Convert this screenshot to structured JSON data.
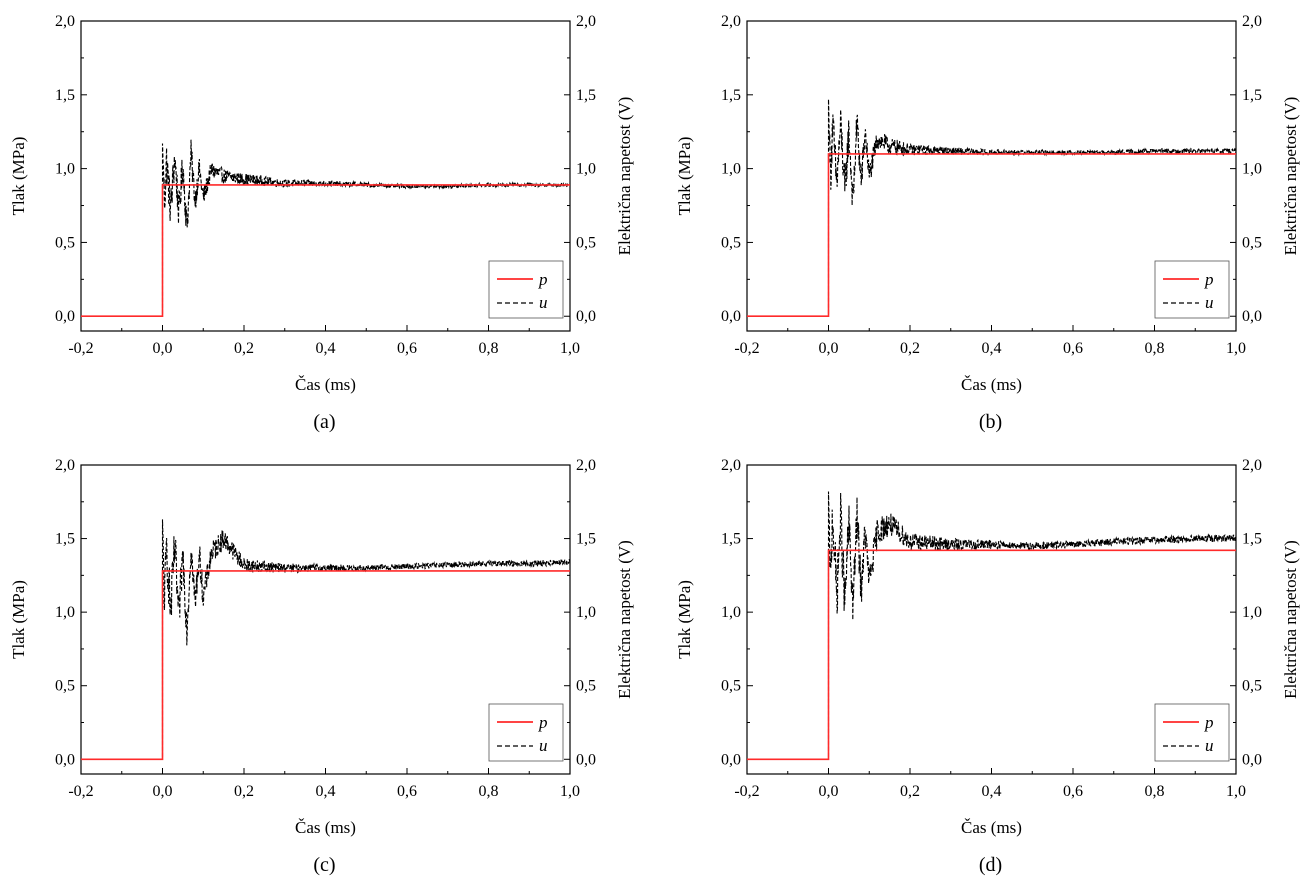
{
  "figure": {
    "colors": {
      "pressure": "#ff2a2a",
      "voltage": "#000000",
      "axes": "#000000",
      "background": "#ffffff"
    }
  },
  "chart_data": [
    {
      "type": "line",
      "panel_label": "(a)",
      "xlabel": "Čas (ms)",
      "ylabel": "Tlak (MPa)",
      "y2label": "Električna napetost (V)",
      "xlim": [
        -0.2,
        1.0
      ],
      "ylim": [
        -0.1,
        2.0
      ],
      "y2lim": [
        -0.1,
        2.0
      ],
      "xticks": [
        "-0,2",
        "0,0",
        "0,2",
        "0,4",
        "0,6",
        "0,8",
        "1,0"
      ],
      "yticks": [
        "0,0",
        "0,5",
        "1,0",
        "1,5",
        "2,0"
      ],
      "legend_position": "bottom-right",
      "series": [
        {
          "name": "p",
          "axis": "left",
          "style": "solid",
          "color": "#ff2a2a",
          "x": [
            -0.2,
            0.0,
            0.0,
            1.0
          ],
          "y": [
            0.0,
            0.0,
            0.89,
            0.89
          ]
        },
        {
          "name": "u",
          "axis": "right",
          "style": "dashed",
          "color": "#000000",
          "x": [
            -0.2,
            0.0,
            0.0,
            0.005,
            0.01,
            0.02,
            0.03,
            0.04,
            0.05,
            0.06,
            0.07,
            0.08,
            0.09,
            0.1,
            0.12,
            0.15,
            0.2,
            0.3,
            0.4,
            0.5,
            0.6,
            0.7,
            0.8,
            0.9,
            1.0
          ],
          "y": [
            0.0,
            0.0,
            1.17,
            0.78,
            1.05,
            0.72,
            1.08,
            0.7,
            1.02,
            0.6,
            1.1,
            0.78,
            1.0,
            0.8,
            0.99,
            0.95,
            0.93,
            0.9,
            0.9,
            0.89,
            0.88,
            0.88,
            0.89,
            0.89,
            0.89
          ],
          "noise_amplitude": [
            0.0,
            0.0,
            0.0,
            0.15,
            0.15,
            0.14,
            0.13,
            0.12,
            0.12,
            0.11,
            0.1,
            0.09,
            0.08,
            0.07,
            0.06,
            0.05,
            0.04,
            0.025,
            0.02,
            0.015,
            0.012,
            0.012,
            0.012,
            0.012,
            0.012
          ]
        }
      ]
    },
    {
      "type": "line",
      "panel_label": "(b)",
      "xlabel": "Čas (ms)",
      "ylabel": "Tlak (MPa)",
      "y2label": "Električna napetost (V)",
      "xlim": [
        -0.2,
        1.0
      ],
      "ylim": [
        -0.1,
        2.0
      ],
      "y2lim": [
        -0.1,
        2.0
      ],
      "xticks": [
        "-0,2",
        "0,0",
        "0,2",
        "0,4",
        "0,6",
        "0,8",
        "1,0"
      ],
      "yticks": [
        "0,0",
        "0,5",
        "1,0",
        "1,5",
        "2,0"
      ],
      "legend_position": "bottom-right",
      "series": [
        {
          "name": "p",
          "axis": "left",
          "style": "solid",
          "color": "#ff2a2a",
          "x": [
            -0.2,
            0.0,
            0.0,
            1.0
          ],
          "y": [
            0.0,
            0.0,
            1.1,
            1.1
          ]
        },
        {
          "name": "u",
          "axis": "right",
          "style": "dashed",
          "color": "#000000",
          "x": [
            -0.2,
            0.0,
            0.0,
            0.005,
            0.01,
            0.02,
            0.03,
            0.04,
            0.05,
            0.06,
            0.07,
            0.08,
            0.09,
            0.1,
            0.12,
            0.15,
            0.2,
            0.3,
            0.4,
            0.5,
            0.6,
            0.7,
            0.8,
            0.9,
            1.0
          ],
          "y": [
            0.0,
            0.0,
            1.47,
            0.95,
            1.3,
            0.9,
            1.3,
            0.85,
            1.25,
            0.77,
            1.32,
            0.9,
            1.25,
            0.95,
            1.2,
            1.15,
            1.13,
            1.12,
            1.11,
            1.11,
            1.11,
            1.11,
            1.12,
            1.12,
            1.12
          ],
          "noise_amplitude": [
            0.0,
            0.0,
            0.0,
            0.16,
            0.16,
            0.15,
            0.14,
            0.14,
            0.13,
            0.12,
            0.11,
            0.1,
            0.09,
            0.08,
            0.07,
            0.06,
            0.04,
            0.025,
            0.02,
            0.015,
            0.015,
            0.015,
            0.015,
            0.015,
            0.015
          ]
        }
      ]
    },
    {
      "type": "line",
      "panel_label": "(c)",
      "xlabel": "Čas (ms)",
      "ylabel": "Tlak (MPa)",
      "y2label": "Električna napetost (V)",
      "xlim": [
        -0.2,
        1.0
      ],
      "ylim": [
        -0.1,
        2.0
      ],
      "y2lim": [
        -0.1,
        2.0
      ],
      "xticks": [
        "-0,2",
        "0,0",
        "0,2",
        "0,4",
        "0,6",
        "0,8",
        "1,0"
      ],
      "yticks": [
        "0,0",
        "0,5",
        "1,0",
        "1,5",
        "2,0"
      ],
      "legend_position": "bottom-right",
      "series": [
        {
          "name": "p",
          "axis": "left",
          "style": "solid",
          "color": "#ff2a2a",
          "x": [
            -0.2,
            0.0,
            0.0,
            1.0
          ],
          "y": [
            0.0,
            0.0,
            1.28,
            1.28
          ]
        },
        {
          "name": "u",
          "axis": "right",
          "style": "dashed",
          "color": "#000000",
          "x": [
            -0.2,
            0.0,
            0.0,
            0.005,
            0.01,
            0.02,
            0.03,
            0.04,
            0.05,
            0.06,
            0.07,
            0.08,
            0.09,
            0.1,
            0.12,
            0.15,
            0.2,
            0.3,
            0.4,
            0.5,
            0.6,
            0.7,
            0.8,
            0.9,
            1.0
          ],
          "y": [
            0.0,
            0.0,
            1.63,
            1.05,
            1.45,
            1.0,
            1.45,
            0.95,
            1.4,
            0.88,
            1.45,
            1.05,
            1.4,
            1.1,
            1.4,
            1.5,
            1.32,
            1.3,
            1.3,
            1.3,
            1.31,
            1.32,
            1.33,
            1.33,
            1.34
          ],
          "noise_amplitude": [
            0.0,
            0.0,
            0.0,
            0.18,
            0.18,
            0.17,
            0.16,
            0.15,
            0.14,
            0.13,
            0.12,
            0.11,
            0.1,
            0.09,
            0.08,
            0.07,
            0.05,
            0.03,
            0.025,
            0.02,
            0.02,
            0.02,
            0.02,
            0.02,
            0.02
          ]
        }
      ]
    },
    {
      "type": "line",
      "panel_label": "(d)",
      "xlabel": "Čas (ms)",
      "ylabel": "Tlak (MPa)",
      "y2label": "Električna napetost (V)",
      "xlim": [
        -0.2,
        1.0
      ],
      "ylim": [
        -0.1,
        2.0
      ],
      "y2lim": [
        -0.1,
        2.0
      ],
      "xticks": [
        "-0,2",
        "0,0",
        "0,2",
        "0,4",
        "0,6",
        "0,8",
        "1,0"
      ],
      "yticks": [
        "0,0",
        "0,5",
        "1,0",
        "1,5",
        "2,0"
      ],
      "legend_position": "bottom-right",
      "series": [
        {
          "name": "p",
          "axis": "left",
          "style": "solid",
          "color": "#ff2a2a",
          "x": [
            -0.2,
            0.0,
            0.0,
            1.0
          ],
          "y": [
            0.0,
            0.0,
            1.42,
            1.42
          ]
        },
        {
          "name": "u",
          "axis": "right",
          "style": "dashed",
          "color": "#000000",
          "x": [
            -0.2,
            0.0,
            0.0,
            0.005,
            0.01,
            0.02,
            0.03,
            0.04,
            0.05,
            0.06,
            0.07,
            0.08,
            0.09,
            0.1,
            0.12,
            0.15,
            0.2,
            0.3,
            0.4,
            0.5,
            0.6,
            0.7,
            0.8,
            0.9,
            1.0
          ],
          "y": [
            0.0,
            0.0,
            1.82,
            1.15,
            1.7,
            1.1,
            1.65,
            1.05,
            1.6,
            1.05,
            1.65,
            1.15,
            1.55,
            1.2,
            1.55,
            1.6,
            1.48,
            1.46,
            1.46,
            1.45,
            1.46,
            1.48,
            1.49,
            1.5,
            1.5
          ],
          "noise_amplitude": [
            0.0,
            0.0,
            0.0,
            0.2,
            0.2,
            0.19,
            0.18,
            0.17,
            0.16,
            0.15,
            0.14,
            0.13,
            0.12,
            0.11,
            0.1,
            0.08,
            0.06,
            0.04,
            0.03,
            0.025,
            0.025,
            0.025,
            0.025,
            0.025,
            0.025
          ]
        }
      ]
    }
  ]
}
